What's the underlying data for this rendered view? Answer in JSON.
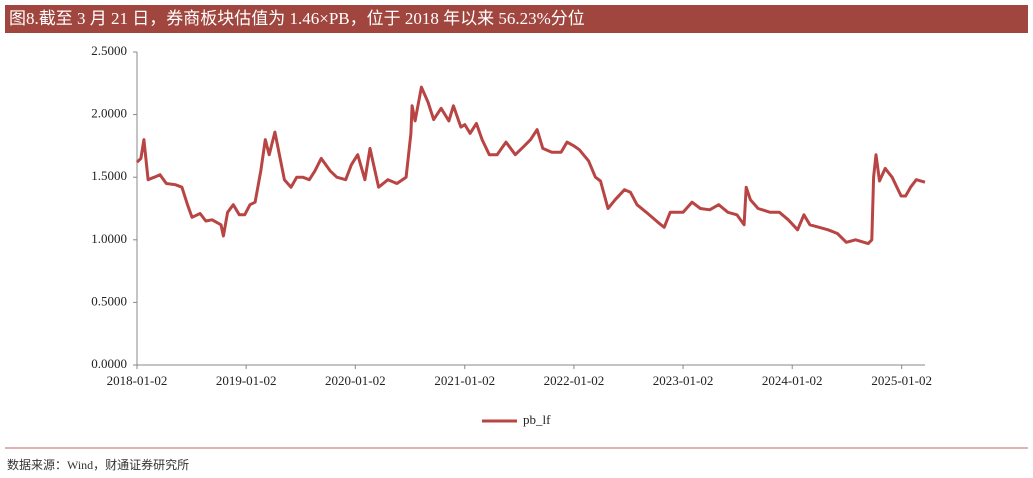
{
  "chart_data": {
    "type": "line",
    "title": "图8.截至 3 月 21 日，券商板块估值为 1.46×PB，位于 2018 年以来 56.23%分位",
    "source": "数据来源：Wind，财通证券研究所",
    "x": [
      "2018-01-02",
      "2018-01-15",
      "2018-01-25",
      "2018-02-08",
      "2018-03-01",
      "2018-03-20",
      "2018-04-10",
      "2018-05-10",
      "2018-06-01",
      "2018-06-20",
      "2018-07-05",
      "2018-08-01",
      "2018-08-20",
      "2018-09-10",
      "2018-10-10",
      "2018-10-18",
      "2018-11-01",
      "2018-11-20",
      "2018-12-10",
      "2018-12-28",
      "2019-01-15",
      "2019-02-01",
      "2019-02-20",
      "2019-03-07",
      "2019-03-20",
      "2019-04-08",
      "2019-04-25",
      "2019-05-10",
      "2019-06-01",
      "2019-06-20",
      "2019-07-10",
      "2019-08-01",
      "2019-08-20",
      "2019-09-10",
      "2019-10-10",
      "2019-11-01",
      "2019-12-01",
      "2019-12-20",
      "2020-01-10",
      "2020-02-03",
      "2020-02-20",
      "2020-03-20",
      "2020-04-20",
      "2020-05-20",
      "2020-06-20",
      "2020-07-06",
      "2020-07-10",
      "2020-07-20",
      "2020-08-10",
      "2020-09-01",
      "2020-09-20",
      "2020-10-15",
      "2020-11-10",
      "2020-11-25",
      "2020-12-20",
      "2021-01-02",
      "2021-01-20",
      "2021-02-10",
      "2021-03-01",
      "2021-03-25",
      "2021-04-20",
      "2021-05-20",
      "2021-06-20",
      "2021-07-20",
      "2021-08-10",
      "2021-09-01",
      "2021-09-20",
      "2021-10-20",
      "2021-11-20",
      "2021-12-10",
      "2022-01-02",
      "2022-01-20",
      "2022-02-20",
      "2022-03-15",
      "2022-04-01",
      "2022-04-26",
      "2022-05-20",
      "2022-06-20",
      "2022-07-10",
      "2022-08-01",
      "2022-09-01",
      "2022-10-10",
      "2022-10-31",
      "2022-11-20",
      "2022-12-20",
      "2023-01-02",
      "2023-02-01",
      "2023-03-01",
      "2023-04-01",
      "2023-05-01",
      "2023-06-01",
      "2023-07-01",
      "2023-07-25",
      "2023-08-01",
      "2023-08-15",
      "2023-09-10",
      "2023-10-20",
      "2023-11-20",
      "2023-12-20",
      "2024-01-20",
      "2024-02-10",
      "2024-03-01",
      "2024-04-01",
      "2024-05-01",
      "2024-06-01",
      "2024-07-01",
      "2024-08-01",
      "2024-09-12",
      "2024-09-24",
      "2024-09-30",
      "2024-10-08",
      "2024-10-20",
      "2024-11-08",
      "2024-12-01",
      "2024-12-31",
      "2025-01-15",
      "2025-02-01",
      "2025-02-20",
      "2025-03-21"
    ],
    "series": [
      {
        "name": "pb_lf",
        "color": "#b84543",
        "values": [
          1.62,
          1.65,
          1.8,
          1.48,
          1.5,
          1.52,
          1.45,
          1.44,
          1.42,
          1.28,
          1.18,
          1.21,
          1.15,
          1.16,
          1.12,
          1.03,
          1.22,
          1.28,
          1.2,
          1.2,
          1.28,
          1.3,
          1.55,
          1.8,
          1.68,
          1.86,
          1.66,
          1.48,
          1.42,
          1.5,
          1.5,
          1.48,
          1.55,
          1.65,
          1.55,
          1.5,
          1.48,
          1.6,
          1.68,
          1.48,
          1.73,
          1.42,
          1.48,
          1.45,
          1.5,
          1.85,
          2.07,
          1.95,
          2.22,
          2.1,
          1.96,
          2.05,
          1.95,
          2.07,
          1.9,
          1.92,
          1.85,
          1.93,
          1.8,
          1.68,
          1.68,
          1.78,
          1.68,
          1.75,
          1.8,
          1.88,
          1.73,
          1.7,
          1.7,
          1.78,
          1.75,
          1.72,
          1.63,
          1.5,
          1.47,
          1.25,
          1.32,
          1.4,
          1.38,
          1.28,
          1.22,
          1.14,
          1.1,
          1.22,
          1.22,
          1.22,
          1.3,
          1.25,
          1.24,
          1.28,
          1.22,
          1.2,
          1.12,
          1.42,
          1.32,
          1.25,
          1.22,
          1.22,
          1.16,
          1.08,
          1.2,
          1.12,
          1.1,
          1.08,
          1.05,
          0.98,
          1.0,
          0.97,
          1.0,
          1.5,
          1.68,
          1.47,
          1.57,
          1.5,
          1.35,
          1.35,
          1.42,
          1.48,
          1.46
        ]
      }
    ],
    "xlim": [
      "2018-01-02",
      "2025-03-21"
    ],
    "xticks": [
      "2018-01-02",
      "2019-01-02",
      "2020-01-02",
      "2021-01-02",
      "2022-01-02",
      "2023-01-02",
      "2024-01-02",
      "2025-01-02"
    ],
    "ylim": [
      0,
      2.5
    ],
    "yticks": [
      {
        "value": 0,
        "label": "0.0000"
      },
      {
        "value": 0.5,
        "label": "0.5000"
      },
      {
        "value": 1,
        "label": "1.0000"
      },
      {
        "value": 1.5,
        "label": "1.5000"
      },
      {
        "value": 2,
        "label": "2.0000"
      },
      {
        "value": 2.5,
        "label": "2.5000"
      }
    ],
    "legend": "bottom"
  }
}
